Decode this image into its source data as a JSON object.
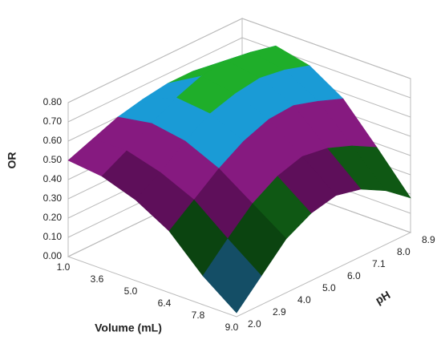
{
  "chart_data": {
    "type": "surface",
    "y_label": "OR",
    "x_label": "Volume (mL)",
    "z_label": "pH",
    "x": [
      "1.0",
      "3.6",
      "5.0",
      "6.4",
      "7.8",
      "9.0"
    ],
    "depth": [
      "2.0",
      "2.9",
      "4.0",
      "5.0",
      "6.0",
      "7.1",
      "8.0",
      "8.9"
    ],
    "values": [
      [
        0.5,
        0.48,
        0.42,
        0.32,
        0.15,
        0.02
      ],
      [
        0.55,
        0.55,
        0.5,
        0.42,
        0.28,
        0.15
      ],
      [
        0.6,
        0.63,
        0.6,
        0.52,
        0.4,
        0.28
      ],
      [
        0.63,
        0.7,
        0.68,
        0.6,
        0.48,
        0.35
      ],
      [
        0.65,
        0.75,
        0.72,
        0.65,
        0.52,
        0.38
      ],
      [
        0.65,
        0.77,
        0.74,
        0.66,
        0.5,
        0.35
      ],
      [
        0.62,
        0.75,
        0.72,
        0.62,
        0.45,
        0.28
      ],
      [
        0.58,
        0.72,
        0.68,
        0.57,
        0.38,
        0.18
      ]
    ],
    "ylim": [
      0,
      0.8
    ],
    "yticks": [
      {
        "value": 0,
        "label": "0.00"
      },
      {
        "value": 0.1,
        "label": "0.10"
      },
      {
        "value": 0.2,
        "label": "0.20"
      },
      {
        "value": 0.3,
        "label": "0.30"
      },
      {
        "value": 0.4,
        "label": "0.40"
      },
      {
        "value": 0.5,
        "label": "0.50"
      },
      {
        "value": 0.6,
        "label": "0.60"
      },
      {
        "value": 0.7,
        "label": "0.70"
      },
      {
        "value": 0.8,
        "label": "0.80"
      }
    ],
    "band_colors": [
      "#d63cc4",
      "#144e66",
      "#0b4410",
      "#0f5814",
      "#5e0f5a",
      "#861a80",
      "#1a9bd6",
      "#1fae2a"
    ],
    "grid": true
  }
}
